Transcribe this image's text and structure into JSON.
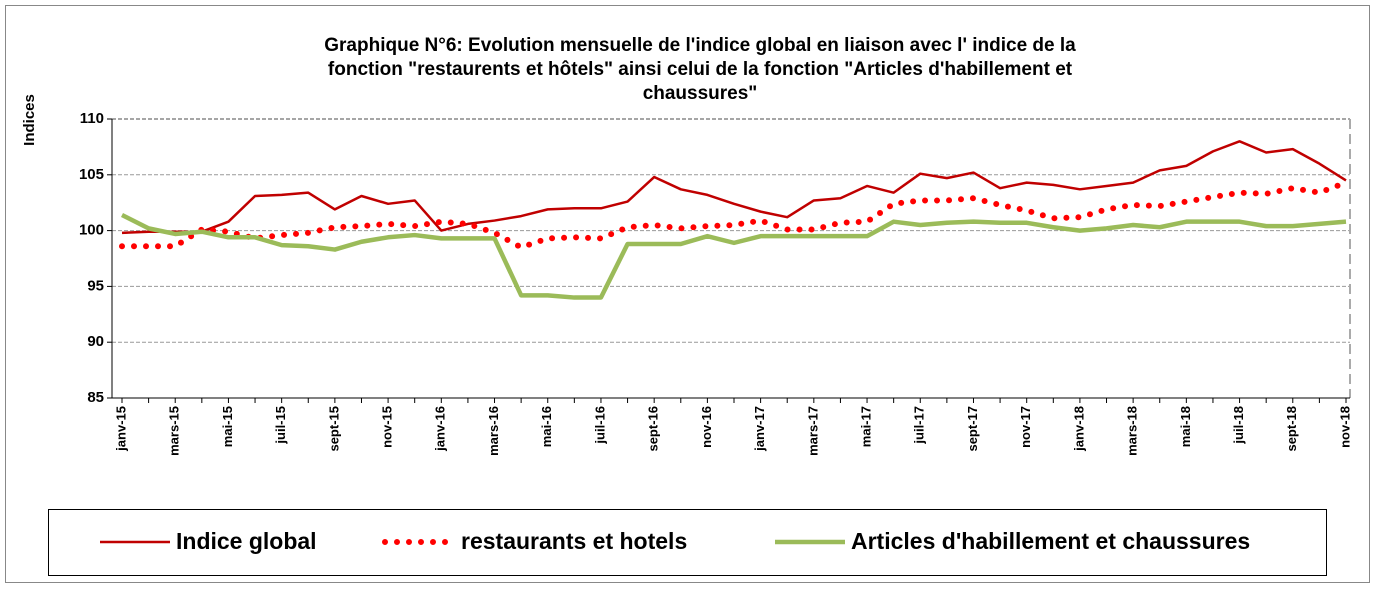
{
  "chart_data": {
    "type": "line",
    "title": [
      "Graphique N°6: Evolution  mensuelle de l'indice global en liaison avec l' indice de la",
      "fonction \"restaurents et hôtels\" ainsi celui de la fonction \"Articles d'habillement et",
      "chaussures\""
    ],
    "y_label": "Indices",
    "categories": [
      "janv-15",
      null,
      "mars-15",
      null,
      "mai-15",
      null,
      "juil-15",
      null,
      "sept-15",
      null,
      "nov-15",
      null,
      "janv-16",
      null,
      "mars-16",
      null,
      "mai-16",
      null,
      "juil-16",
      null,
      "sept-16",
      null,
      "nov-16",
      null,
      "janv-17",
      null,
      "mars-17",
      null,
      "mai-17",
      null,
      "juil-17",
      null,
      "sept-17",
      null,
      "nov-17",
      null,
      "janv-18",
      null,
      "mars-18",
      null,
      "mai-18",
      null,
      "juil-18",
      null,
      "sept-18",
      null,
      "nov-18"
    ],
    "series": [
      {
        "name": "Indice global",
        "color": "#c00000",
        "line_style": "solid",
        "values": [
          99.8,
          99.9,
          99.9,
          99.9,
          100.8,
          103.1,
          103.2,
          103.4,
          101.9,
          103.1,
          102.4,
          102.7,
          100.0,
          100.6,
          100.9,
          101.3,
          101.9,
          102.0,
          102.0,
          102.6,
          104.8,
          103.7,
          103.2,
          102.4,
          101.7,
          101.2,
          102.7,
          102.9,
          104.0,
          103.4,
          105.1,
          104.7,
          105.2,
          103.8,
          104.3,
          104.1,
          103.7,
          104.0,
          104.3,
          105.4,
          105.8,
          107.1,
          108.0,
          107.0,
          107.3,
          106.0,
          104.5
        ]
      },
      {
        "name": "restaurants et hotels",
        "color": "#ff0000",
        "line_style": "dotted",
        "values": [
          98.6,
          98.6,
          98.6,
          100.1,
          99.9,
          99.3,
          99.6,
          99.8,
          100.3,
          100.4,
          100.6,
          100.4,
          100.8,
          100.6,
          99.8,
          98.5,
          99.3,
          99.4,
          99.3,
          100.3,
          100.5,
          100.2,
          100.4,
          100.5,
          100.9,
          100.1,
          100.1,
          100.7,
          100.8,
          102.4,
          102.7,
          102.7,
          102.9,
          102.3,
          101.8,
          101.1,
          101.2,
          101.9,
          102.3,
          102.2,
          102.6,
          103.0,
          103.4,
          103.3,
          103.8,
          103.4,
          104.3
        ]
      },
      {
        "name": "Articles d'habillement et chaussures",
        "color": "#9bbb59",
        "line_style": "solid",
        "values": [
          101.4,
          100.2,
          99.7,
          99.9,
          99.4,
          99.4,
          98.7,
          98.6,
          98.3,
          99.0,
          99.4,
          99.6,
          99.3,
          99.3,
          99.3,
          94.2,
          94.2,
          94.0,
          94.0,
          98.8,
          98.8,
          98.8,
          99.5,
          98.9,
          99.5,
          99.5,
          99.5,
          99.5,
          99.5,
          100.8,
          100.5,
          100.7,
          100.8,
          100.7,
          100.7,
          100.3,
          100.0,
          100.2,
          100.5,
          100.3,
          100.8,
          100.8,
          100.8,
          100.4,
          100.4,
          100.6,
          100.8
        ]
      }
    ],
    "ylim": [
      85,
      110
    ],
    "yticks": [
      85,
      90,
      95,
      100,
      105,
      110
    ],
    "grid": true,
    "legend": "bottom"
  }
}
